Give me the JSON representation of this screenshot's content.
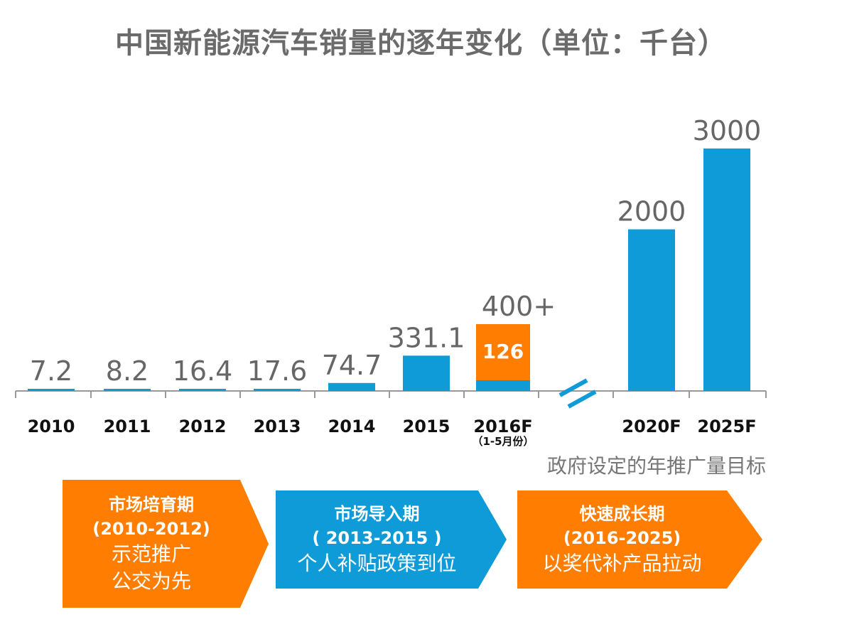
{
  "chart_data": {
    "type": "bar",
    "title": "中国新能源汽车销量的逐年变化（单位：千台）",
    "categories": [
      "2010",
      "2011",
      "2012",
      "2013",
      "2014",
      "2015",
      "2016F",
      "2020F",
      "2025F"
    ],
    "sub_labels": {
      "2016F": "（1-5月份）"
    },
    "values": [
      7.2,
      8.2,
      16.4,
      17.6,
      74.7,
      331.1,
      400,
      2000,
      3000
    ],
    "data_labels": [
      "7.2",
      "8.2",
      "16.4",
      "17.6",
      "74.7",
      "331.1",
      "400+",
      "2000",
      "3000"
    ],
    "partial": {
      "category": "2016F",
      "value": 126,
      "label": "126"
    },
    "axis_break_after": "2016F",
    "colors": {
      "bar": "#0f9bd7",
      "forecast_2016": "#ff7d00",
      "label": "#666666"
    },
    "annotation": "政府设定的年推广量目标",
    "grid": false
  },
  "phases": [
    {
      "title": "市场培育期",
      "years": "(2010-2012)",
      "lines": [
        "示范推广",
        "公交为先"
      ],
      "color": "#ff7d00"
    },
    {
      "title": "市场导入期",
      "years": "( 2013-2015 )",
      "lines": [
        "个人补贴政策到位"
      ],
      "color": "#0f9bd7"
    },
    {
      "title": "快速成长期",
      "years": "(2016-2025)",
      "lines": [
        "以奖代补产品拉动"
      ],
      "color": "#ff7d00"
    }
  ]
}
